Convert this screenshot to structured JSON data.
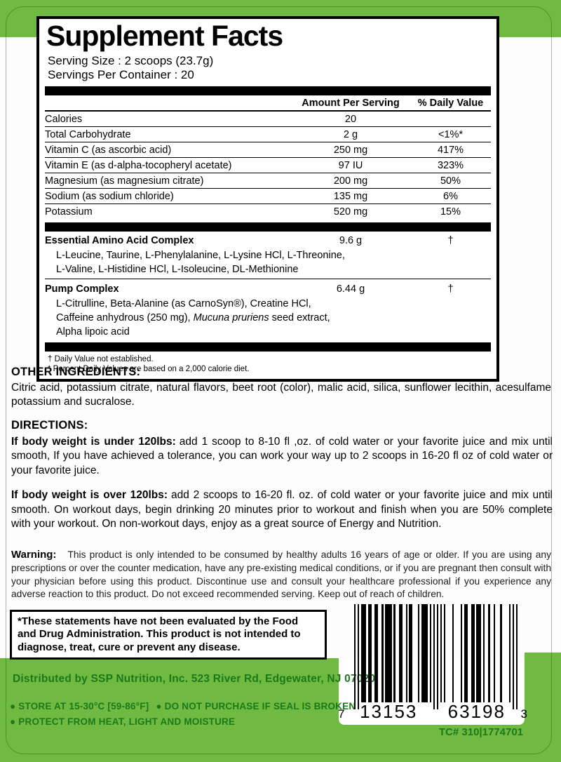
{
  "facts": {
    "title": "Supplement Facts",
    "serving_size": "Serving Size : 2 scoops (23.7g)",
    "servings": "Servings Per Container : 20",
    "header": {
      "amount": "Amount Per Serving",
      "dv": "% Daily Value"
    },
    "rows": [
      {
        "name": "Calories",
        "amount": "20",
        "dv": ""
      },
      {
        "name": "Total Carbohydrate",
        "amount": "2 g",
        "dv": "<1%*"
      },
      {
        "name": "Vitamin C (as ascorbic acid)",
        "amount": "250 mg",
        "dv": "417%"
      },
      {
        "name": "Vitamin E (as d-alpha-tocopheryl acetate)",
        "amount": "97 IU",
        "dv": "323%"
      },
      {
        "name": "Magnesium (as magnesium citrate)",
        "amount": "200 mg",
        "dv": "50%"
      },
      {
        "name": "Sodium (as sodium chloride)",
        "amount": "135 mg",
        "dv": "6%"
      },
      {
        "name": "Potassium",
        "amount": "520 mg",
        "dv": "15%"
      }
    ],
    "eaa": {
      "name": "Essential Amino Acid Complex",
      "amount": "9.6 g",
      "dv": "†",
      "line1": "L-Leucine, Taurine, L-Phenylalanine, L-Lysine HCl, L-Threonine,",
      "line2": "L-Valine, L-Histidine HCl, L-Isoleucine, DL-Methionine"
    },
    "pump": {
      "name": "Pump Complex",
      "amount": "6.44 g",
      "dv": "†",
      "line1": "L-Citrulline, Beta-Alanine (as CarnoSyn®), Creatine HCl,",
      "line2_pre": "Caffeine anhydrous (250 mg),  ",
      "line2_italic": "Mucuna pruriens",
      "line2_post": " seed extract,",
      "line3": "Alpha lipoic acid"
    },
    "footnote1": "† Daily Value not established.",
    "footnote2": "* Percent Daily Values are based on a 2,000 calorie diet."
  },
  "other_ingredients": {
    "heading": "OTHER INGREDIENTS:",
    "text": "Citric acid, potassium citrate, natural flavors, beet root (color), malic acid, silica, sunflower lecithin, acesulfame potassium and sucralose."
  },
  "directions": {
    "heading": "DIRECTIONS:",
    "p1_lead": "If body weight is under 120lbs:",
    "p1_text": "add 1 scoop to 8-10 fl ,oz. of cold water or your favorite juice and mix until smooth, If you have achieved a tolerance, you can work your way up to 2 scoops in 16-20 fl oz of cold water or your favorite juice.",
    "p2_lead": "If body weight is over 120lbs:",
    "p2_text": "add 2 scoops to 16-20 fl. oz. of cold water or your favorite juice and mix until smooth. On workout days, begin drinking 20 minutes prior to workout and finish when you are 50% complete with your workout.  On non-workout days, enjoy as a great source of Energy and Nutrition."
  },
  "warning": {
    "lead": "Warning:",
    "text": "This product is only intended to be consumed by healthy adults 16 years of age or older.  If you are using any prescriptions or over the counter medication, have any pre-existing medical conditions, or if you are pregnant then consult with your physician before using this product.  Discontinue use and consult your healthcare professional if you experience any adverse reaction to this product.  Do not exceed recommended serving.  Keep out of reach of children."
  },
  "disclaimer": "*These statements have not been evaluated by the Food and Drug Administration.  This product is not intended to diagnose, treat, cure or prevent any disease.",
  "footer": {
    "distributor": "Distributed by SSP Nutrition, Inc.  523 River Rd, Edgewater, NJ  07020",
    "storage1": "● STORE AT 15-30°C [59-86°F]",
    "storage2": "● DO NOT PURCHASE IF SEAL IS BROKEN",
    "storage3": "● PROTECT FROM HEAT, LIGHT AND MOISTURE"
  },
  "barcode": {
    "left_digit": "7",
    "group1": "13153",
    "group2": "63198",
    "right_digit": "3",
    "tc": "TC# 310|1774701"
  },
  "colors": {
    "green": "#70ba41",
    "green_dark": "#1a7a1a",
    "black": "#000000"
  }
}
